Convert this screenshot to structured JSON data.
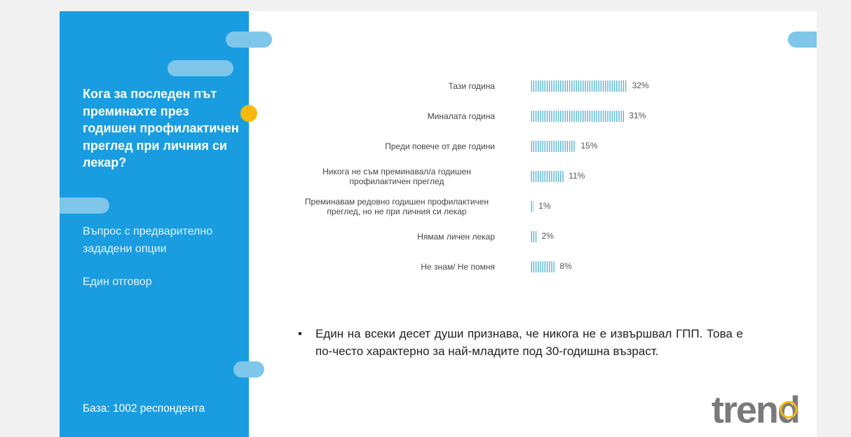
{
  "panel": {
    "question": "Кога за последен път преминахте през годишен профилактичен преглед при личния си лекар?",
    "note": "Въпрос с предварително зададени опции",
    "answer_type": "Един отговор",
    "base": "База:  1002 респондента"
  },
  "chart_data": {
    "type": "bar",
    "orientation": "horizontal",
    "categories": [
      "Тази година",
      "Миналата година",
      "Преди повече от две години",
      "Никога не съм преминавал/а годишен профилактичен преглед",
      "Преминавам редовно годишен профилактичен преглед, но не при личния си лекар",
      "Нямам личен лекар",
      "Не знам/ Не помня"
    ],
    "values": [
      32,
      31,
      15,
      11,
      1,
      2,
      8
    ],
    "value_labels": [
      "32%",
      "31%",
      "15%",
      "11%",
      "1%",
      "2%",
      "8%"
    ],
    "color": "#4aaed0"
  },
  "bullet": "Един на всеки десет души признава, че никога не е извършвал ГПП. Това е по-често характерно за най-младите под 30-годишна възраст.",
  "logo": "trend"
}
